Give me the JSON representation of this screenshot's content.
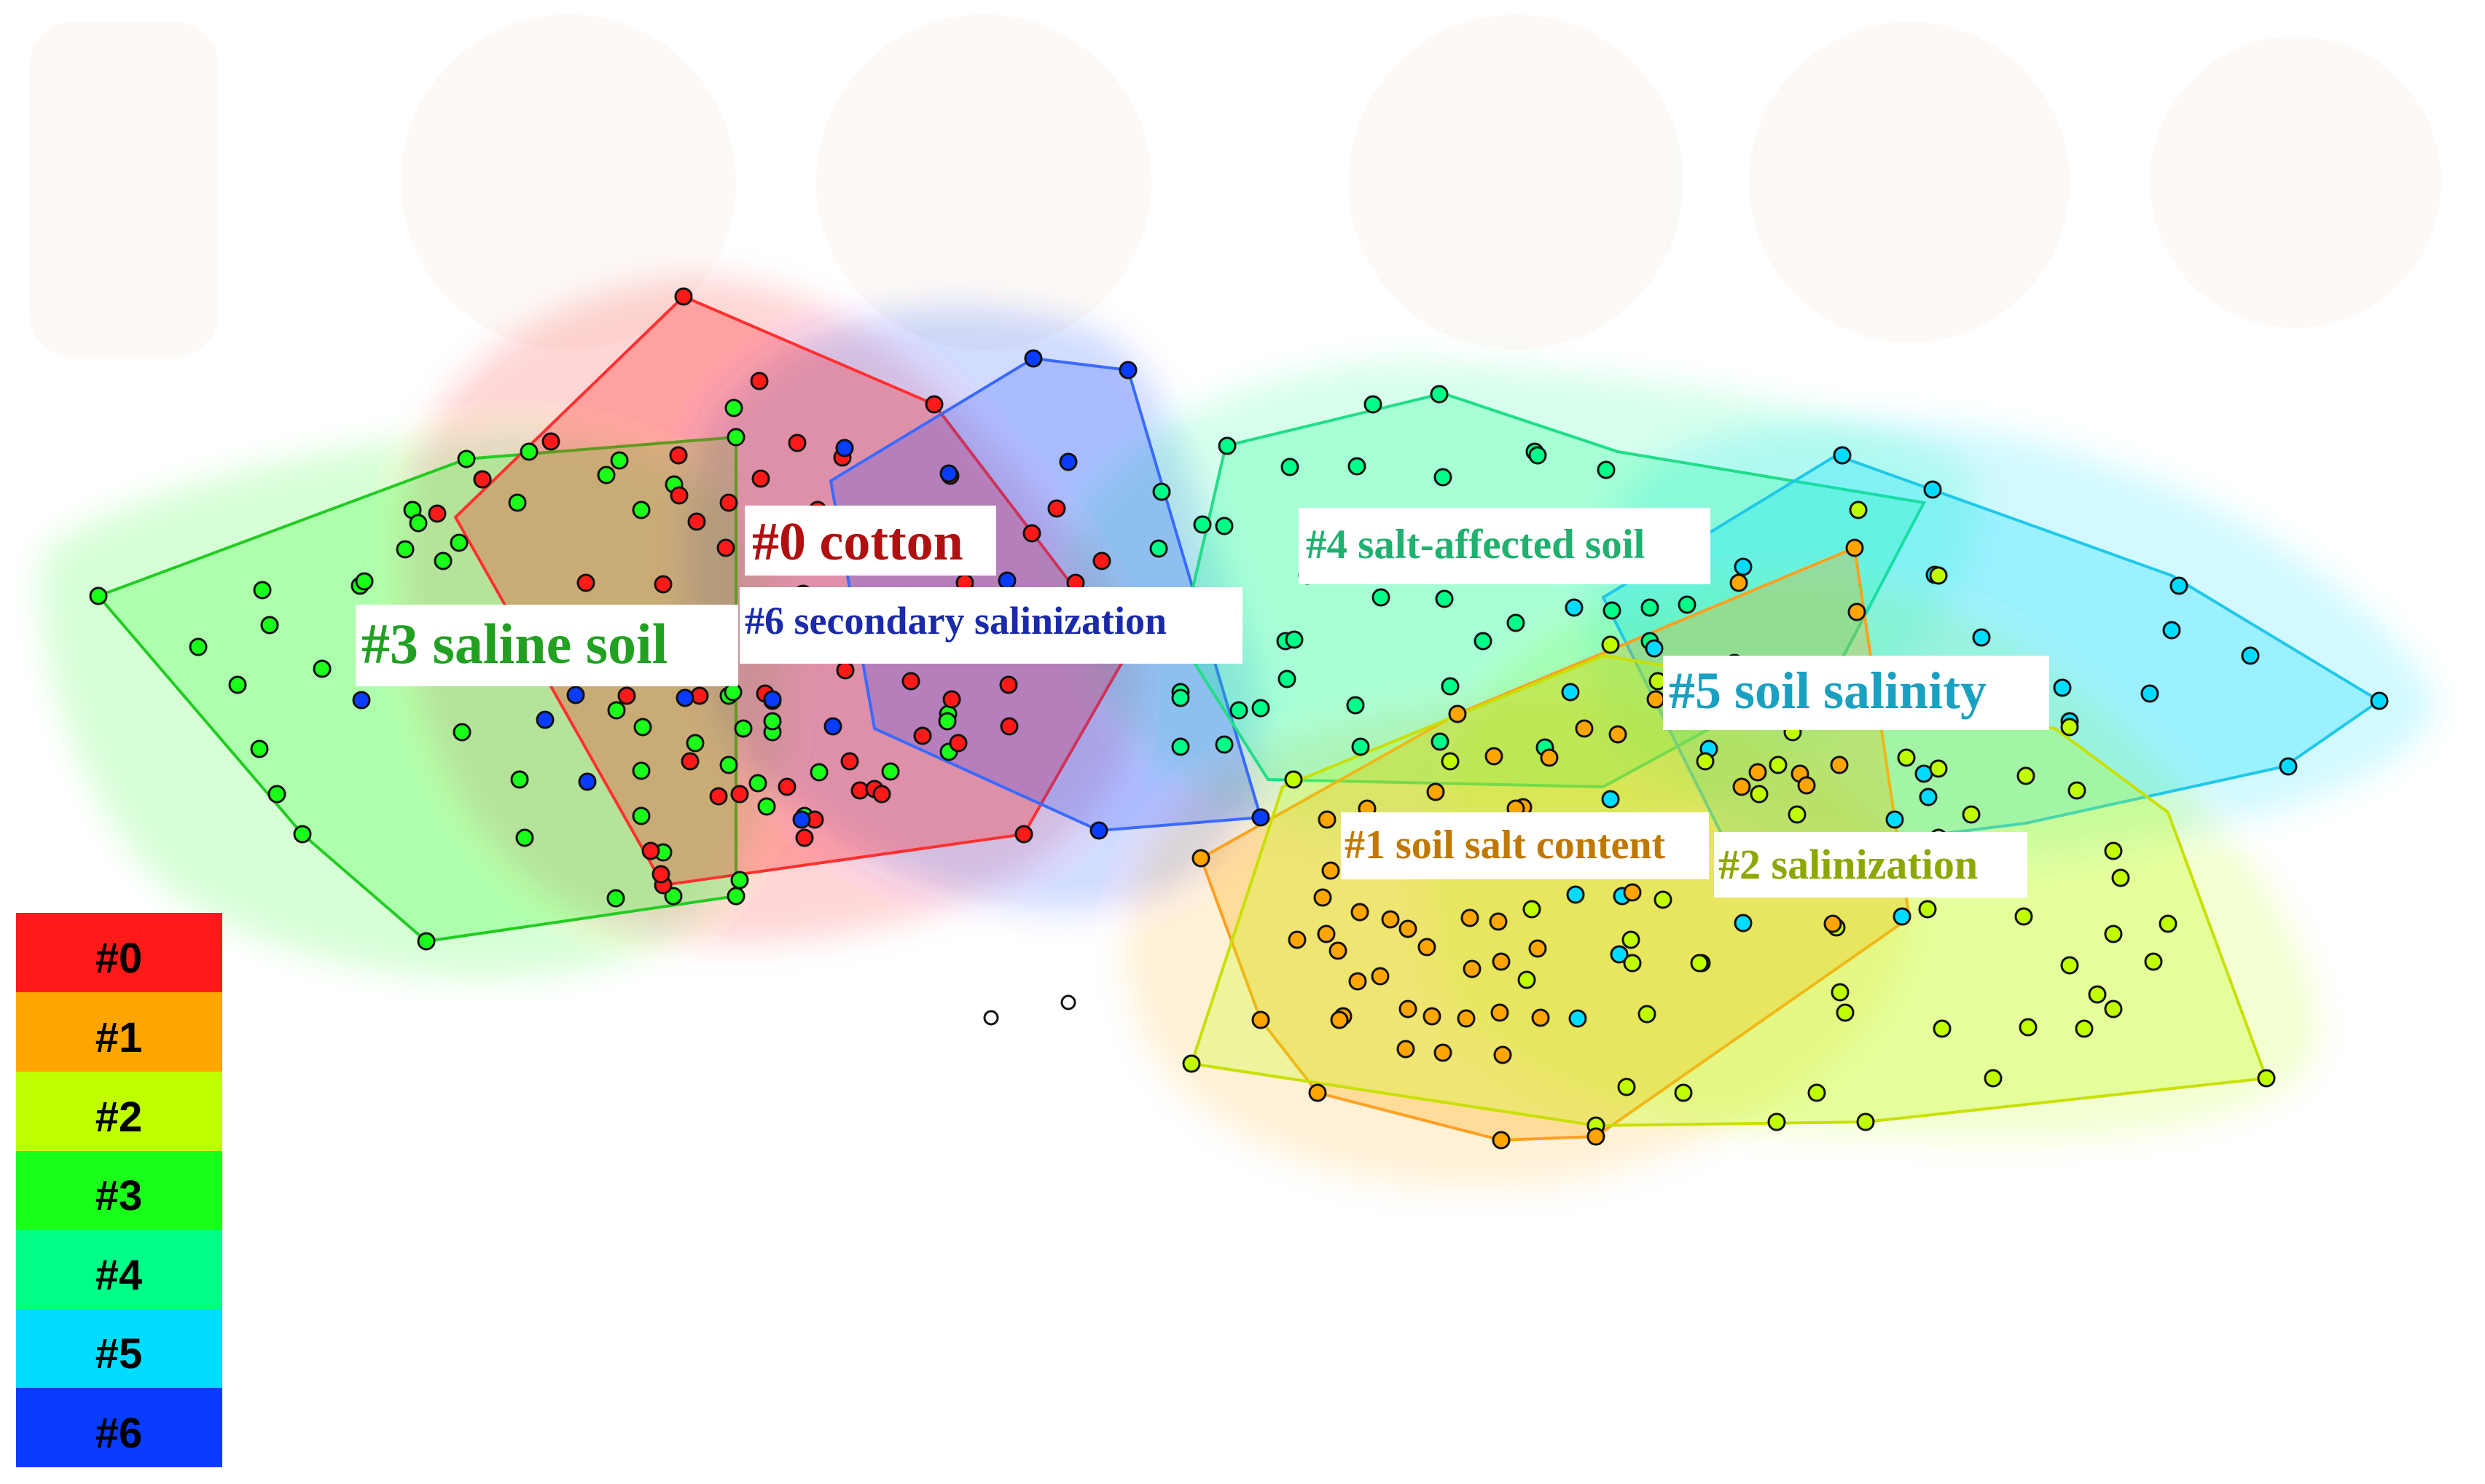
{
  "colors": {
    "c0": "#ff1a1a",
    "c1": "#ffa500",
    "c2": "#bfff00",
    "c3": "#1aff1a",
    "c4": "#00ff88",
    "c5": "#00dcff",
    "c6": "#0a3cff",
    "label0": "#b01010",
    "label1": "#c07800",
    "label2": "#8aa800",
    "label3": "#22a022",
    "label4": "#20b070",
    "label5": "#1aa0c0",
    "label6": "#1a2aa8"
  },
  "legend": {
    "items": [
      {
        "label": "#0",
        "color": "#ff1a1a"
      },
      {
        "label": "#1",
        "color": "#ffa500"
      },
      {
        "label": "#2",
        "color": "#bfff00"
      },
      {
        "label": "#3",
        "color": "#1aff1a"
      },
      {
        "label": "#4",
        "color": "#00ff88"
      },
      {
        "label": "#5",
        "color": "#00dcff"
      },
      {
        "label": "#6",
        "color": "#0a3cff"
      }
    ]
  },
  "clusters": [
    {
      "id": "0",
      "label": "#0 cotton"
    },
    {
      "id": "1",
      "label": "#1 soil salt content"
    },
    {
      "id": "2",
      "label": "#2 salinization"
    },
    {
      "id": "3",
      "label": "#3 saline soil"
    },
    {
      "id": "4",
      "label": "#4 salt-affected soil"
    },
    {
      "id": "5",
      "label": "#5 soil salinity"
    },
    {
      "id": "6",
      "label": "#6 secondary salinization"
    }
  ]
}
